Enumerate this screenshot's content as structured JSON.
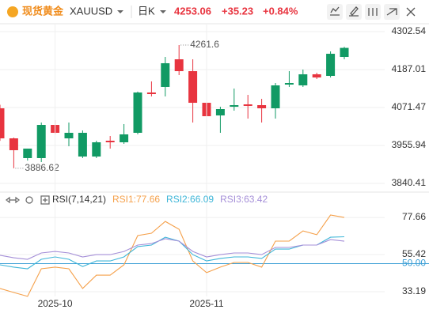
{
  "header": {
    "logo_text": "现货黄金",
    "symbol": "XAUUSD",
    "period": "日K",
    "price": "4253.06",
    "change": "+35.23",
    "change_pct": "+0.84%"
  },
  "chart_data": [
    {
      "type": "candlestick",
      "open": [
        4069.1,
        3977.6,
        3917.5,
        3917.5,
        4018.5,
        3977.6,
        3922.3,
        3922.3,
        3970.4,
        3965.6,
        3994.5,
        4117.2,
        4134.1,
        4218.3,
        4182.2,
        4085.9,
        4047.4,
        4073.9,
        4081.1,
        4078.7,
        4069.1,
        4141.3,
        4138.9,
        4172.6,
        4167.8,
        4225.5
      ],
      "high": [
        4080.0,
        3980.0,
        3946.4,
        4025.8,
        4033.0,
        4025.8,
        4001.7,
        3970.4,
        3984.8,
        4021.0,
        4120.0,
        4150.9,
        4225.5,
        4261.6,
        4218.3,
        4110.0,
        4073.9,
        4129.2,
        4110.0,
        4097.9,
        4146.1,
        4182.2,
        4187.0,
        4177.4,
        4242.4,
        4256.33
      ],
      "low": [
        3970.0,
        3886.62,
        3910.0,
        3905.4,
        3989.7,
        3953.6,
        3917.5,
        3917.5,
        3946.4,
        3960.8,
        3990.0,
        4105.2,
        4105.2,
        4170.2,
        4025.8,
        4001.7,
        3994.5,
        4061.9,
        4037.8,
        4025.8,
        4037.8,
        4134.1,
        4134.1,
        4158.1,
        4163.0,
        4218.3
      ],
      "close": [
        3977.6,
        3941.5,
        3946.4,
        4018.5,
        3994.5,
        3994.5,
        3994.5,
        3965.6,
        3965.6,
        3989.7,
        4117.2,
        4112.4,
        4206.3,
        4182.2,
        4085.9,
        4045.0,
        4066.7,
        4078.7,
        4076.3,
        4069.1,
        4138.9,
        4146.1,
        4172.6,
        4163.0,
        4235.1,
        4253.06
      ],
      "up_color": "#119a64",
      "down_color": "#e8343f",
      "ylim": [
        3821.2,
        4326.6
      ],
      "yticks": [
        4302.54,
        4187.01,
        4071.47,
        3955.94,
        3840.41
      ],
      "grid": true
    },
    {
      "type": "line",
      "title": "RSI(7,14,21)",
      "categories": [
        null,
        null,
        null,
        null,
        "2025-10",
        null,
        null,
        null,
        null,
        null,
        null,
        null,
        null,
        null,
        null,
        "2025-11",
        null,
        null,
        null,
        null,
        null,
        null,
        null,
        null,
        null,
        null
      ],
      "series": [
        {
          "name": "RSI1:77.66",
          "color": "#f5a04a",
          "values": [
            35.1,
            32.7,
            30.4,
            46.9,
            47.9,
            46.9,
            35.1,
            43.1,
            43.1,
            49.3,
            66.8,
            68.2,
            75.3,
            70.6,
            51.6,
            44.6,
            47.9,
            50.7,
            50.7,
            47.9,
            63.5,
            63.5,
            69.6,
            67.3,
            79.1,
            77.66
          ]
        },
        {
          "name": "RSI2:66.09",
          "color": "#3fb6d8",
          "values": [
            49.3,
            47.9,
            46.9,
            52.6,
            54.0,
            52.6,
            48.3,
            51.6,
            51.6,
            54.0,
            60.2,
            61.1,
            65.8,
            63.5,
            55.4,
            51.6,
            53.1,
            54.0,
            54.0,
            53.1,
            58.7,
            58.7,
            61.1,
            61.1,
            65.8,
            66.09
          ]
        },
        {
          "name": "RSI3:63.42",
          "color": "#a58fd8",
          "values": [
            55.0,
            53.5,
            52.6,
            56.4,
            57.3,
            56.4,
            54.0,
            55.4,
            55.4,
            57.3,
            61.1,
            62.0,
            64.9,
            63.5,
            57.3,
            54.0,
            55.4,
            56.4,
            56.4,
            55.4,
            59.7,
            59.7,
            61.1,
            61.1,
            64.4,
            63.42
          ]
        }
      ],
      "reference_line": 50,
      "reference_color": "#3c9fd6",
      "ylim": [
        18.5,
        91.9
      ],
      "yticks": [
        77.66,
        55.42,
        {
          "value": 50,
          "label": "50.00"
        },
        33.19
      ],
      "grid": true
    }
  ]
}
